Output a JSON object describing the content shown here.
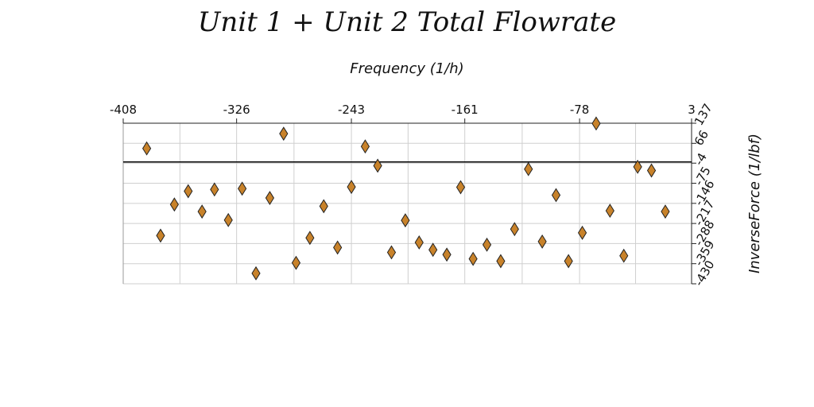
{
  "chart_data": {
    "type": "scatter",
    "title": "Unit 1 + Unit 2 Total Flowrate",
    "xlabel": "Frequency (1/h)",
    "ylabel": "InverseForce (1/lbf)",
    "xlim": [
      -408,
      3
    ],
    "ylim": [
      -430,
      137
    ],
    "x_ticks": [
      "-408",
      "-326",
      "-243",
      "-161",
      "-78",
      "3"
    ],
    "y_ticks": [
      "137",
      "66",
      "-4",
      "-75",
      "-146",
      "-217",
      "-288",
      "-359",
      "-430"
    ],
    "x_axis_position": "top",
    "y_axis_position": "right",
    "grid": true,
    "marker": "diamond",
    "marker_color": "#c8822a",
    "marker_edge_color": "#222222",
    "series": [
      {
        "x": [
          -391,
          -381,
          -371,
          -361,
          -351,
          -342,
          -332,
          -322,
          -312,
          -302,
          -292,
          -283,
          -273,
          -263,
          -253,
          -243,
          -233,
          -224,
          -214,
          -204,
          -194,
          -184,
          -174,
          -164,
          -155,
          -145,
          -135,
          -125,
          -115,
          -105,
          -95,
          -86,
          -76,
          -66,
          -56,
          -46,
          -36,
          -26,
          -16
        ],
        "y": [
          48,
          -260,
          -150,
          -103,
          -175,
          -97,
          -205,
          -94,
          -393,
          -127,
          100,
          -356,
          -268,
          -156,
          -302,
          -88,
          55,
          -13,
          -319,
          -206,
          -284,
          -310,
          -327,
          -89,
          -342,
          -292,
          -350,
          -237,
          -25,
          -281,
          -117,
          -350,
          -250,
          136,
          -172,
          -331,
          -17,
          -30,
          -175
        ]
      }
    ]
  }
}
